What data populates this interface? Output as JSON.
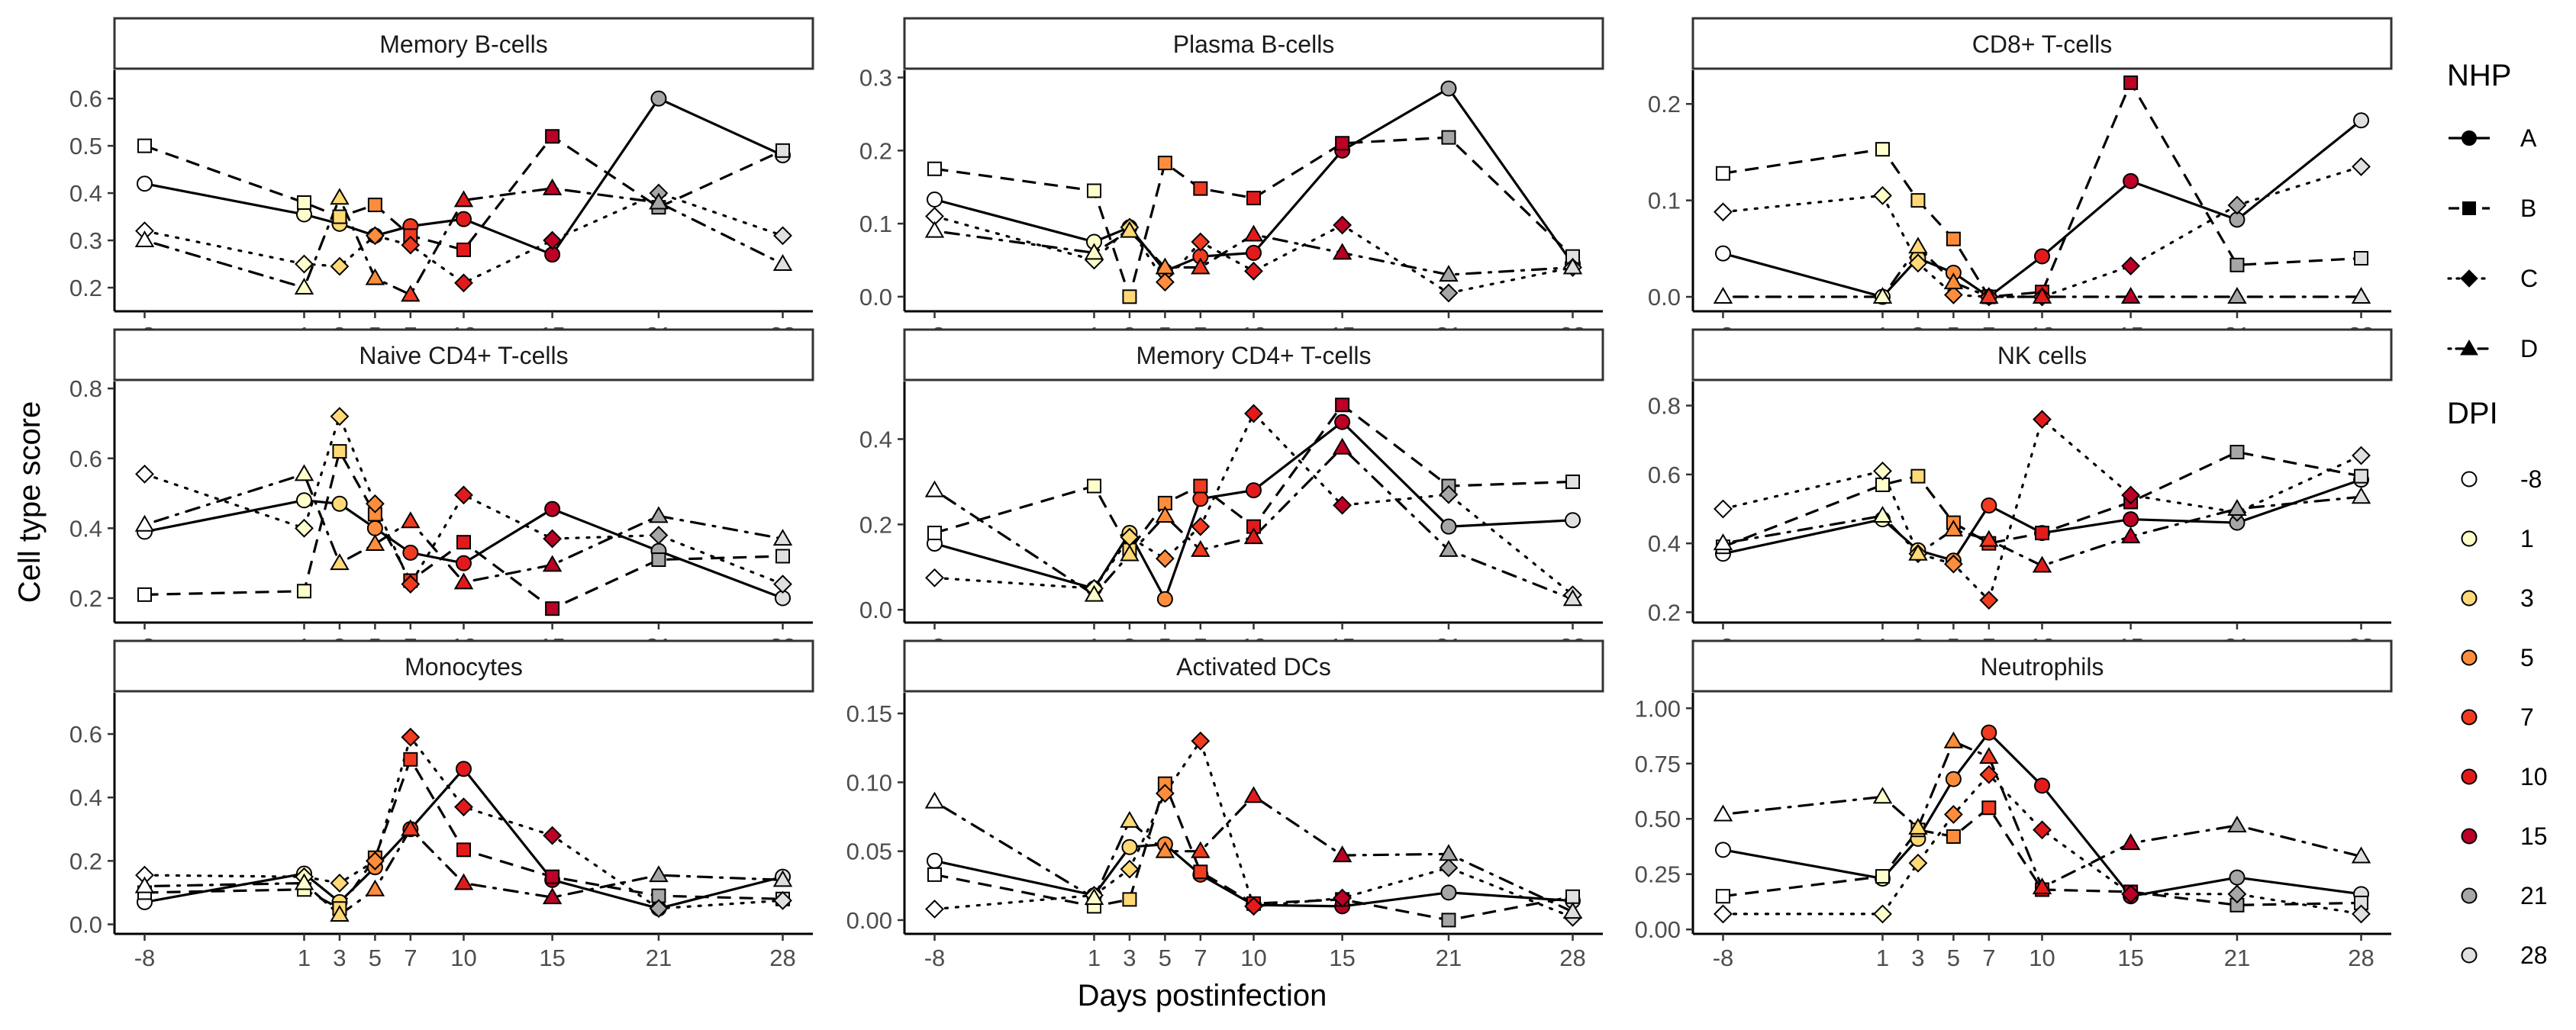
{
  "chart_data": {
    "type": "line",
    "xlabel": "Days postinfection",
    "ylabel": "Cell type score",
    "x_ticks": [
      -8,
      1,
      3,
      5,
      7,
      10,
      15,
      21,
      28
    ],
    "line_styles": {
      "A": "solid",
      "B": "dashed",
      "C": "dotted",
      "D": "dashdot"
    },
    "shapes": {
      "A": "circle",
      "B": "square",
      "C": "diamond",
      "D": "triangle"
    },
    "legend": {
      "nhp_title": "NHP",
      "nhp": [
        "A",
        "B",
        "C",
        "D"
      ],
      "dpi_title": "DPI",
      "dpi": [
        "-8",
        "1",
        "3",
        "5",
        "7",
        "10",
        "15",
        "21",
        "28"
      ],
      "dpi_colors": [
        "#ffffff",
        "#ffffcc",
        "#fed976",
        "#fd8d3c",
        "#f03b20",
        "#e31a1c",
        "#bd0026",
        "#a6a6a6",
        "#e0e0e0"
      ]
    },
    "panels": [
      {
        "title": "Memory B-cells",
        "ylim": [
          0.15,
          0.66
        ],
        "yticks": [
          "0.2",
          "0.3",
          "0.4",
          "0.5",
          "0.6"
        ],
        "series": [
          {
            "name": "A",
            "values": [
              0.42,
              0.355,
              0.335,
              0.31,
              0.33,
              0.345,
              0.27,
              0.6,
              0.48
            ]
          },
          {
            "name": "B",
            "values": [
              0.5,
              0.38,
              0.35,
              0.375,
              0.31,
              0.28,
              0.52,
              0.37,
              0.49
            ]
          },
          {
            "name": "C",
            "values": [
              0.32,
              0.25,
              0.245,
              0.31,
              0.29,
              0.21,
              0.3,
              0.4,
              0.31
            ]
          },
          {
            "name": "D",
            "values": [
              0.3,
              0.2,
              0.39,
              0.22,
              0.185,
              0.385,
              0.41,
              0.38,
              0.25
            ]
          }
        ]
      },
      {
        "title": "Plasma B-cells",
        "ylim": [
          -0.02,
          0.31
        ],
        "yticks": [
          "0.0",
          "0.1",
          "0.2",
          "0.3"
        ],
        "series": [
          {
            "name": "A",
            "values": [
              0.133,
              0.075,
              0.095,
              0.035,
              0.055,
              0.06,
              0.2,
              0.285,
              0.045
            ]
          },
          {
            "name": "B",
            "values": [
              0.175,
              0.145,
              0.0,
              0.183,
              0.148,
              0.135,
              0.21,
              0.218,
              0.055
            ]
          },
          {
            "name": "C",
            "values": [
              0.11,
              0.05,
              0.095,
              0.02,
              0.075,
              0.035,
              0.098,
              0.005,
              0.04
            ]
          },
          {
            "name": "D",
            "values": [
              0.09,
              0.06,
              0.09,
              0.04,
              0.04,
              0.085,
              0.06,
              0.03,
              0.04
            ]
          }
        ]
      },
      {
        "title": "CD8+ T-cells",
        "ylim": [
          -0.015,
          0.235
        ],
        "yticks": [
          "0.0",
          "0.1",
          "0.2"
        ],
        "series": [
          {
            "name": "A",
            "values": [
              0.045,
              0.0,
              0.04,
              0.025,
              0.0,
              0.042,
              0.12,
              0.08,
              0.183
            ]
          },
          {
            "name": "B",
            "values": [
              0.128,
              0.153,
              0.1,
              0.06,
              0.0,
              0.005,
              0.222,
              0.033,
              0.04
            ]
          },
          {
            "name": "C",
            "values": [
              0.088,
              0.105,
              0.035,
              0.002,
              0.0,
              0.0,
              0.032,
              0.095,
              0.135
            ]
          },
          {
            "name": "D",
            "values": [
              0.0,
              0.0,
              0.052,
              0.015,
              0.0,
              0.0,
              0.0,
              0.0,
              0.0
            ]
          }
        ]
      },
      {
        "title": "Naive CD4+ T-cells",
        "ylim": [
          0.13,
          0.82
        ],
        "yticks": [
          "0.2",
          "0.4",
          "0.6",
          "0.8"
        ],
        "series": [
          {
            "name": "A",
            "values": [
              0.39,
              0.48,
              0.47,
              0.4,
              0.33,
              0.3,
              0.455,
              0.335,
              0.2
            ]
          },
          {
            "name": "B",
            "values": [
              0.21,
              0.22,
              0.62,
              0.44,
              0.25,
              0.36,
              0.17,
              0.31,
              0.32
            ]
          },
          {
            "name": "C",
            "values": [
              0.555,
              0.4,
              0.72,
              0.47,
              0.24,
              0.495,
              0.37,
              0.38,
              0.24
            ]
          },
          {
            "name": "D",
            "values": [
              0.41,
              0.555,
              0.3,
              0.355,
              0.42,
              0.245,
              0.295,
              0.435,
              0.37
            ]
          }
        ]
      },
      {
        "title": "Memory CD4+ T-cells",
        "ylim": [
          -0.03,
          0.535
        ],
        "yticks": [
          "0.0",
          "0.2",
          "0.4"
        ],
        "series": [
          {
            "name": "A",
            "values": [
              0.155,
              0.05,
              0.18,
              0.025,
              0.26,
              0.28,
              0.44,
              0.195,
              0.21
            ]
          },
          {
            "name": "B",
            "values": [
              0.18,
              0.29,
              0.14,
              0.25,
              0.29,
              0.195,
              0.48,
              0.29,
              0.3
            ]
          },
          {
            "name": "C",
            "values": [
              0.075,
              0.05,
              0.17,
              0.12,
              0.195,
              0.46,
              0.245,
              0.27,
              0.035
            ]
          },
          {
            "name": "D",
            "values": [
              0.28,
              0.035,
              0.13,
              0.22,
              0.14,
              0.17,
              0.38,
              0.14,
              0.025
            ]
          }
        ]
      },
      {
        "title": "NK cells",
        "ylim": [
          0.17,
          0.87
        ],
        "yticks": [
          "0.2",
          "0.4",
          "0.6",
          "0.8"
        ],
        "series": [
          {
            "name": "A",
            "values": [
              0.37,
              0.47,
              0.38,
              0.35,
              0.51,
              0.43,
              0.47,
              0.46,
              0.585
            ]
          },
          {
            "name": "B",
            "values": [
              0.39,
              0.57,
              0.595,
              0.46,
              0.4,
              0.43,
              0.52,
              0.665,
              0.595
            ]
          },
          {
            "name": "C",
            "values": [
              0.5,
              0.61,
              0.37,
              0.34,
              0.235,
              0.76,
              0.54,
              0.49,
              0.655
            ]
          },
          {
            "name": "D",
            "values": [
              0.4,
              0.48,
              0.37,
              0.44,
              0.41,
              0.335,
              0.42,
              0.5,
              0.535
            ]
          }
        ]
      },
      {
        "title": "Monocytes",
        "ylim": [
          -0.03,
          0.73
        ],
        "yticks": [
          "0.0",
          "0.2",
          "0.4",
          "0.6"
        ],
        "series": [
          {
            "name": "A",
            "values": [
              0.07,
              0.16,
              0.07,
              0.18,
              0.3,
              0.49,
              0.14,
              0.05,
              0.15
            ]
          },
          {
            "name": "B",
            "values": [
              0.1,
              0.11,
              0.05,
              0.21,
              0.52,
              0.235,
              0.15,
              0.09,
              0.08
            ]
          },
          {
            "name": "C",
            "values": [
              0.155,
              0.15,
              0.13,
              0.2,
              0.59,
              0.37,
              0.28,
              0.05,
              0.075
            ]
          },
          {
            "name": "D",
            "values": [
              0.12,
              0.13,
              0.03,
              0.11,
              0.3,
              0.13,
              0.085,
              0.155,
              0.14
            ]
          }
        ]
      },
      {
        "title": "Activated DCs",
        "ylim": [
          -0.01,
          0.165
        ],
        "yticks": [
          "0.00",
          "0.05",
          "0.10",
          "0.15"
        ],
        "series": [
          {
            "name": "A",
            "values": [
              0.043,
              0.018,
              0.053,
              0.055,
              0.033,
              0.011,
              0.01,
              0.02,
              0.014
            ]
          },
          {
            "name": "B",
            "values": [
              0.033,
              0.01,
              0.015,
              0.099,
              0.035,
              0.012,
              0.015,
              0.0,
              0.017
            ]
          },
          {
            "name": "C",
            "values": [
              0.008,
              0.018,
              0.037,
              0.092,
              0.13,
              0.01,
              0.016,
              0.038,
              0.002
            ]
          },
          {
            "name": "D",
            "values": [
              0.086,
              0.016,
              0.072,
              0.05,
              0.05,
              0.09,
              0.047,
              0.048,
              0.006
            ]
          }
        ]
      },
      {
        "title": "Neutrophils",
        "ylim": [
          -0.02,
          1.07
        ],
        "yticks": [
          "0.00",
          "0.25",
          "0.50",
          "0.75",
          "1.00"
        ],
        "series": [
          {
            "name": "A",
            "values": [
              0.36,
              0.23,
              0.41,
              0.68,
              0.89,
              0.65,
              0.15,
              0.235,
              0.16
            ]
          },
          {
            "name": "B",
            "values": [
              0.15,
              0.24,
              0.45,
              0.42,
              0.55,
              0.18,
              0.17,
              0.11,
              0.12
            ]
          },
          {
            "name": "C",
            "values": [
              0.07,
              0.07,
              0.3,
              0.52,
              0.7,
              0.45,
              0.16,
              0.16,
              0.07
            ]
          },
          {
            "name": "D",
            "values": [
              0.52,
              0.6,
              0.46,
              0.85,
              0.78,
              0.19,
              0.39,
              0.47,
              0.33
            ]
          }
        ]
      }
    ]
  }
}
